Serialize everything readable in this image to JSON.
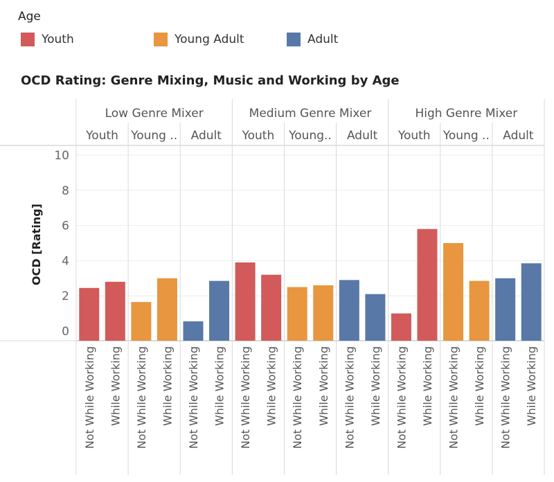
{
  "legend": {
    "title": "Age",
    "items": [
      {
        "label": "Youth",
        "color": "#d35a5a"
      },
      {
        "label": "Young Adult",
        "color": "#e8963f"
      },
      {
        "label": "Adult",
        "color": "#5878a8"
      }
    ]
  },
  "chart_data": {
    "type": "bar",
    "title": "OCD Rating: Genre Mixing, Music and Working by Age",
    "ylabel": "OCD [Rating]",
    "ylim": [
      0,
      10
    ],
    "yticks": [
      0,
      2,
      4,
      6,
      8,
      10
    ],
    "legend_placement": "top-left",
    "grid": true,
    "x_categories": [
      "Not While Working",
      "While Working"
    ],
    "groups": [
      {
        "label": "Low Genre Mixer",
        "subgroups": [
          {
            "label": "Youth",
            "age": "Youth",
            "values": [
              2.45,
              2.8
            ]
          },
          {
            "label": "Young ..",
            "age": "Young Adult",
            "values": [
              1.65,
              3.0
            ]
          },
          {
            "label": "Adult",
            "age": "Adult",
            "values": [
              0.55,
              2.85
            ]
          }
        ]
      },
      {
        "label": "Medium Genre Mixer",
        "subgroups": [
          {
            "label": "Youth",
            "age": "Youth",
            "values": [
              3.9,
              3.2
            ]
          },
          {
            "label": "Young..",
            "age": "Young Adult",
            "values": [
              2.5,
              2.6
            ]
          },
          {
            "label": "Adult",
            "age": "Adult",
            "values": [
              2.9,
              2.1
            ]
          }
        ]
      },
      {
        "label": "High Genre Mixer",
        "subgroups": [
          {
            "label": "Youth",
            "age": "Youth",
            "values": [
              1.0,
              5.8
            ]
          },
          {
            "label": "Young ..",
            "age": "Young Adult",
            "values": [
              5.0,
              2.85
            ]
          },
          {
            "label": "Adult",
            "age": "Adult",
            "values": [
              3.0,
              3.85
            ]
          }
        ]
      }
    ]
  }
}
